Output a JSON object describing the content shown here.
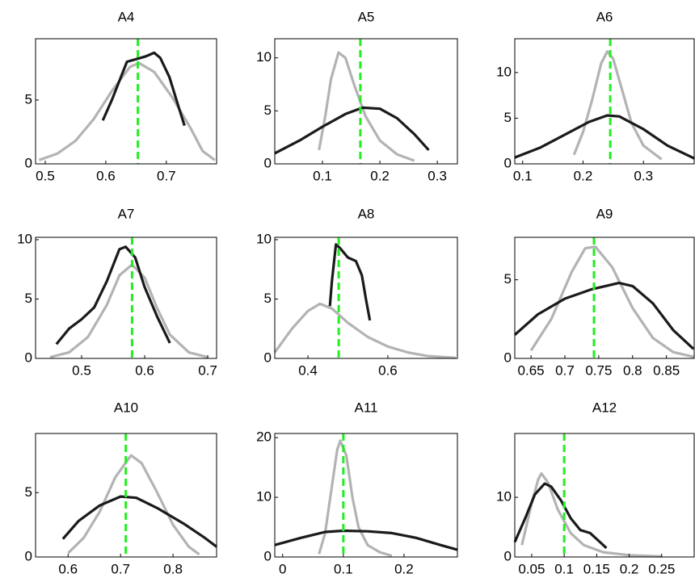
{
  "chart_data": [
    {
      "type": "line",
      "title": "A4",
      "xlim": [
        0.484,
        0.783
      ],
      "ylim": [
        0,
        9.8
      ],
      "xticks": [
        0.5,
        0.6,
        0.7
      ],
      "yticks": [
        0,
        5
      ],
      "vline": {
        "x": 0.653,
        "color": "#22ee22"
      },
      "series": [
        {
          "color": "#b3b3b3",
          "x": [
            0.49,
            0.52,
            0.55,
            0.58,
            0.61,
            0.64,
            0.655,
            0.68,
            0.71,
            0.74,
            0.76,
            0.78
          ],
          "values": [
            0.3,
            0.8,
            1.8,
            3.5,
            5.7,
            7.6,
            7.9,
            7.2,
            5.2,
            2.8,
            1.0,
            0.3
          ]
        },
        {
          "color": "#1a1a1a",
          "x": [
            0.595,
            0.61,
            0.625,
            0.635,
            0.65,
            0.665,
            0.68,
            0.69,
            0.705,
            0.72,
            0.73
          ],
          "values": [
            3.4,
            5.0,
            6.8,
            8.0,
            8.2,
            8.4,
            8.7,
            8.3,
            6.8,
            4.5,
            3.0
          ]
        }
      ]
    },
    {
      "type": "line",
      "title": "A5",
      "xlim": [
        0.017,
        0.335
      ],
      "ylim": [
        0,
        11.8
      ],
      "xticks": [
        0.1,
        0.2,
        0.3
      ],
      "yticks": [
        0,
        5,
        10
      ],
      "vline": {
        "x": 0.166,
        "color": "#22ee22"
      },
      "series": [
        {
          "color": "#b3b3b3",
          "x": [
            0.094,
            0.105,
            0.115,
            0.128,
            0.14,
            0.155,
            0.175,
            0.2,
            0.23,
            0.26
          ],
          "values": [
            1.3,
            4.5,
            8,
            10.5,
            10,
            7.5,
            4.5,
            2.2,
            0.9,
            0.3
          ]
        },
        {
          "color": "#1a1a1a",
          "x": [
            0.017,
            0.06,
            0.1,
            0.14,
            0.17,
            0.2,
            0.23,
            0.26,
            0.285
          ],
          "values": [
            1.0,
            2.2,
            3.5,
            4.7,
            5.3,
            5.2,
            4.3,
            2.8,
            1.3
          ]
        }
      ]
    },
    {
      "type": "line",
      "title": "A6",
      "xlim": [
        0.087,
        0.384
      ],
      "ylim": [
        0,
        13.7
      ],
      "xticks": [
        0.1,
        0.2,
        0.3
      ],
      "yticks": [
        0,
        5,
        10
      ],
      "vline": {
        "x": 0.245,
        "color": "#22ee22"
      },
      "series": [
        {
          "color": "#b3b3b3",
          "x": [
            0.185,
            0.2,
            0.215,
            0.23,
            0.24,
            0.25,
            0.265,
            0.28,
            0.3,
            0.33
          ],
          "values": [
            1,
            3.5,
            7,
            11,
            12.3,
            11.5,
            8,
            4.5,
            2,
            0.5
          ]
        },
        {
          "color": "#1a1a1a",
          "x": [
            0.087,
            0.13,
            0.17,
            0.21,
            0.24,
            0.26,
            0.3,
            0.34,
            0.384
          ],
          "values": [
            0.7,
            1.8,
            3.2,
            4.6,
            5.3,
            5.2,
            3.8,
            2,
            0.6
          ]
        }
      ]
    },
    {
      "type": "line",
      "title": "A7",
      "xlim": [
        0.427,
        0.714
      ],
      "ylim": [
        0,
        10.2
      ],
      "xticks": [
        0.5,
        0.6,
        0.7
      ],
      "yticks": [
        0,
        5,
        10
      ],
      "vline": {
        "x": 0.58,
        "color": "#22ee22"
      },
      "series": [
        {
          "color": "#b3b3b3",
          "x": [
            0.45,
            0.48,
            0.51,
            0.54,
            0.56,
            0.58,
            0.6,
            0.62,
            0.64,
            0.67,
            0.7
          ],
          "values": [
            0.1,
            0.5,
            1.8,
            4.5,
            7,
            7.9,
            6.8,
            4.2,
            2,
            0.5,
            0.1
          ]
        },
        {
          "color": "#1a1a1a",
          "x": [
            0.46,
            0.48,
            0.5,
            0.52,
            0.54,
            0.56,
            0.57,
            0.585,
            0.6,
            0.62,
            0.64
          ],
          "values": [
            1.2,
            2.5,
            3.3,
            4.3,
            6.5,
            9.2,
            9.4,
            8.5,
            6,
            3.5,
            1.3
          ]
        }
      ]
    },
    {
      "type": "line",
      "title": "A8",
      "xlim": [
        0.317,
        0.774
      ],
      "ylim": [
        0,
        10.2
      ],
      "xticks": [
        0.4,
        0.6
      ],
      "yticks": [
        0,
        5,
        10
      ],
      "vline": {
        "x": 0.477,
        "color": "#22ee22"
      },
      "series": [
        {
          "color": "#b3b3b3",
          "x": [
            0.317,
            0.36,
            0.4,
            0.43,
            0.46,
            0.5,
            0.55,
            0.6,
            0.65,
            0.7,
            0.77
          ],
          "values": [
            0.5,
            2.5,
            4,
            4.6,
            4.2,
            3,
            1.8,
            1,
            0.5,
            0.2,
            0.05
          ]
        },
        {
          "color": "#1a1a1a",
          "x": [
            0.455,
            0.46,
            0.47,
            0.48,
            0.5,
            0.52,
            0.535,
            0.545,
            0.555
          ],
          "values": [
            4.4,
            6.5,
            9.6,
            9.3,
            8.5,
            8.2,
            7,
            5,
            3.2
          ]
        }
      ]
    },
    {
      "type": "line",
      "title": "A9",
      "xlim": [
        0.626,
        0.891
      ],
      "ylim": [
        0,
        7.7
      ],
      "xticks": [
        0.65,
        0.7,
        0.75,
        0.8,
        0.85
      ],
      "yticks": [
        0,
        5
      ],
      "vline": {
        "x": 0.743,
        "color": "#22ee22"
      },
      "series": [
        {
          "color": "#b3b3b3",
          "x": [
            0.65,
            0.68,
            0.71,
            0.73,
            0.745,
            0.77,
            0.8,
            0.83,
            0.86,
            0.89
          ],
          "values": [
            0.5,
            2.5,
            5.5,
            7,
            7.1,
            5.8,
            3.2,
            1.3,
            0.4,
            0.1
          ]
        },
        {
          "color": "#1a1a1a",
          "x": [
            0.626,
            0.66,
            0.7,
            0.74,
            0.78,
            0.8,
            0.83,
            0.86,
            0.89
          ],
          "values": [
            1.5,
            2.8,
            3.8,
            4.4,
            4.8,
            4.6,
            3.5,
            1.8,
            0.6
          ]
        }
      ]
    },
    {
      "type": "line",
      "title": "A10",
      "xlim": [
        0.538,
        0.883
      ],
      "ylim": [
        0,
        9.6
      ],
      "xticks": [
        0.6,
        0.7,
        0.8
      ],
      "yticks": [
        0,
        5
      ],
      "vline": {
        "x": 0.71,
        "color": "#22ee22"
      },
      "series": [
        {
          "color": "#b3b3b3",
          "x": [
            0.6,
            0.63,
            0.66,
            0.69,
            0.72,
            0.74,
            0.77,
            0.8,
            0.83,
            0.85
          ],
          "values": [
            0.3,
            1.5,
            3.5,
            6.2,
            7.9,
            7.3,
            5,
            2.5,
            0.8,
            0.2
          ]
        },
        {
          "color": "#1a1a1a",
          "x": [
            0.59,
            0.62,
            0.66,
            0.7,
            0.73,
            0.77,
            0.82,
            0.86,
            0.883
          ],
          "values": [
            1.4,
            2.8,
            4,
            4.7,
            4.6,
            3.8,
            2.6,
            1.5,
            0.8
          ]
        }
      ]
    },
    {
      "type": "line",
      "title": "A11",
      "xlim": [
        -0.013,
        0.288
      ],
      "ylim": [
        0,
        20.7
      ],
      "xticks": [
        0,
        0.1,
        0.2
      ],
      "yticks": [
        0,
        10,
        20
      ],
      "vline": {
        "x": 0.1,
        "color": "#22ee22"
      },
      "series": [
        {
          "color": "#b3b3b3",
          "x": [
            0.06,
            0.07,
            0.08,
            0.09,
            0.095,
            0.105,
            0.115,
            0.125,
            0.14,
            0.16,
            0.18
          ],
          "values": [
            0.5,
            4,
            11,
            18,
            19.5,
            17,
            10,
            5,
            2,
            0.8,
            0.2
          ]
        },
        {
          "color": "#1a1a1a",
          "x": [
            -0.013,
            0.03,
            0.07,
            0.1,
            0.14,
            0.18,
            0.22,
            0.26,
            0.288
          ],
          "values": [
            2.0,
            3.2,
            4.2,
            4.4,
            4.3,
            4.0,
            3.2,
            2.0,
            1.2
          ]
        }
      ]
    },
    {
      "type": "line",
      "title": "A12",
      "xlim": [
        0.024,
        0.3
      ],
      "ylim": [
        0,
        20.7
      ],
      "xticks": [
        0.05,
        0.1,
        0.15,
        0.2,
        0.25
      ],
      "yticks": [
        0,
        10
      ],
      "vline": {
        "x": 0.1,
        "color": "#22ee22"
      },
      "series": [
        {
          "color": "#b3b3b3",
          "x": [
            0.035,
            0.05,
            0.06,
            0.065,
            0.075,
            0.09,
            0.11,
            0.13,
            0.16,
            0.2,
            0.25
          ],
          "values": [
            2,
            9,
            13,
            14,
            12.5,
            8,
            4,
            2,
            0.8,
            0.3,
            0.1
          ]
        },
        {
          "color": "#1a1a1a",
          "x": [
            0.024,
            0.04,
            0.055,
            0.07,
            0.08,
            0.095,
            0.11,
            0.125,
            0.14,
            0.155,
            0.165
          ],
          "values": [
            2.5,
            6.5,
            10.5,
            12.3,
            11.8,
            9.5,
            6.5,
            4.5,
            4,
            2.5,
            1.5
          ]
        }
      ]
    }
  ]
}
